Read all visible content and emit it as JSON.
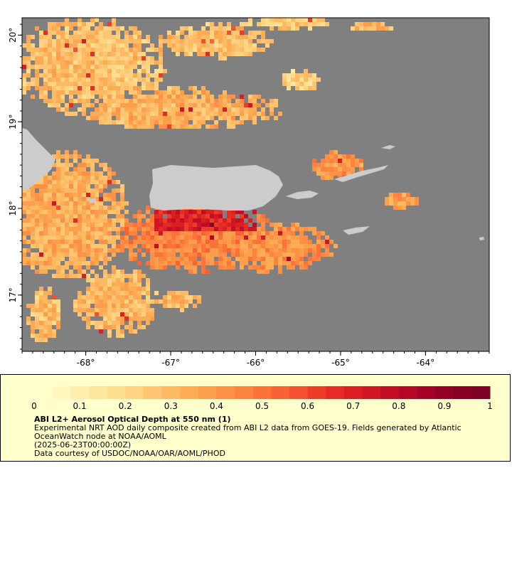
{
  "map": {
    "lon_ticks": [
      -68,
      -67,
      -66,
      -65,
      -64
    ],
    "lat_ticks": [
      17,
      18,
      19,
      20
    ],
    "lon_range": [
      -68.75,
      -63.25
    ],
    "lat_range": [
      16.35,
      20.2
    ],
    "lon_tick_labels": [
      "-68°",
      "-67°",
      "-66°",
      "-65°",
      "-64°"
    ],
    "lat_tick_labels": [
      "17°",
      "18°",
      "19°",
      "20°"
    ],
    "colors": {
      "no_data": "#808080",
      "land": "#cccccc",
      "low": "#ffeeaa",
      "mid": "#fa9a44",
      "high": "#c0101e",
      "max": "#7a0020"
    }
  },
  "colorbar": {
    "min": 0,
    "max": 1,
    "tick_labels": [
      "0",
      "0.1",
      "0.2",
      "0.3",
      "0.4",
      "0.5",
      "0.6",
      "0.7",
      "0.8",
      "0.9",
      "1"
    ],
    "colors": [
      "#ffffcc",
      "#fff7bd",
      "#ffefae",
      "#fee79f",
      "#fedf90",
      "#fed381",
      "#fec672",
      "#feb963",
      "#fdab55",
      "#fd9e4d",
      "#fd9046",
      "#fc8340",
      "#fc733a",
      "#fa6234",
      "#f3502f",
      "#ec3d2a",
      "#e42b25",
      "#da1f23",
      "#ce1624",
      "#c10e25",
      "#b40826",
      "#a50326",
      "#950026",
      "#860026",
      "#800026"
    ]
  },
  "legend": {
    "title": "ABI L2+ Aerosol Optical Depth at 550 nm (1)",
    "line1": "Experimental NRT AOD daily composite created from ABI L2 data from GOES-19. Fields generated by Atlantic OceanWatch node at NOAA/AOML",
    "line2": "(2025-06-23T00:00:00Z)",
    "line3": "Data courtesy of USDOC/NOAA/OAR/AOML/PHOD"
  }
}
